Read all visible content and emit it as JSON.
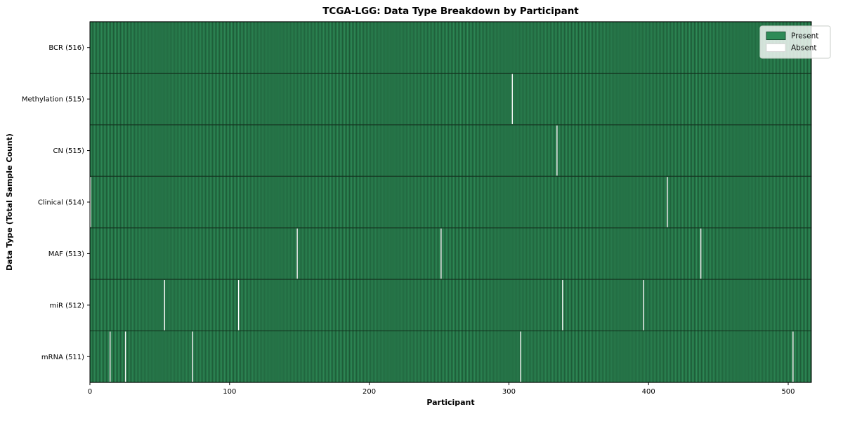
{
  "chart_data": {
    "type": "heatmap",
    "title": "TCGA-LGG: Data Type Breakdown by Participant",
    "xlabel": "Participant",
    "ylabel": "Data Type (Total Sample Count)",
    "n_participants": 516,
    "x_ticks": [
      0,
      100,
      200,
      300,
      400,
      500
    ],
    "xlim": [
      0,
      516
    ],
    "grid": false,
    "legend": {
      "position": "upper right",
      "entries": [
        {
          "label": "Present",
          "color": "#2e8b57"
        },
        {
          "label": "Absent",
          "color": "#ffffff"
        }
      ]
    },
    "rows": [
      {
        "label": "BCR (516)",
        "data_type": "BCR",
        "present_count": 516,
        "absent_participants": []
      },
      {
        "label": "Methylation (515)",
        "data_type": "Methylation",
        "present_count": 515,
        "absent_participants": [
          302
        ]
      },
      {
        "label": "CN (515)",
        "data_type": "CN",
        "present_count": 515,
        "absent_participants": [
          334
        ]
      },
      {
        "label": "Clinical (514)",
        "data_type": "Clinical",
        "present_count": 514,
        "absent_participants": [
          0,
          413
        ]
      },
      {
        "label": "MAF (513)",
        "data_type": "MAF",
        "present_count": 513,
        "absent_participants": [
          148,
          251,
          437
        ]
      },
      {
        "label": "miR (512)",
        "data_type": "miR",
        "present_count": 512,
        "absent_participants": [
          53,
          106,
          338,
          396
        ]
      },
      {
        "label": "mRNA (511)",
        "data_type": "mRNA",
        "present_count": 511,
        "absent_participants": [
          14,
          25,
          73,
          308,
          503
        ]
      }
    ],
    "colors": {
      "present": "#2e8b57",
      "absent": "#ffffff",
      "bar_edge": "#0d2f1b",
      "row_separator": "#0f2d1a",
      "spine": "#000000",
      "legend_bg": "rgba(255,255,255,0.8)",
      "legend_border": "#c9cec9",
      "present_swatch_edge": "#1b5235",
      "absent_swatch_edge": "#d8d8d8"
    }
  }
}
